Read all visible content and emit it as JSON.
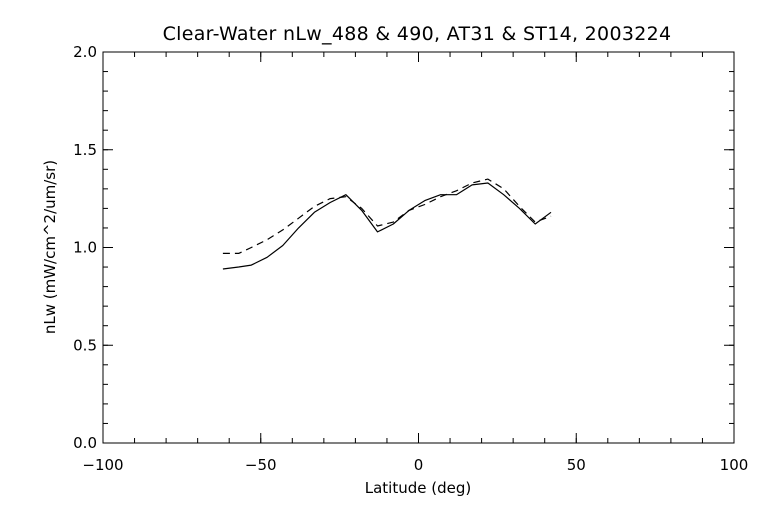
{
  "chart_data": {
    "type": "line",
    "title": "Clear-Water nLw_488 & 490, AT31 & ST14, 2003224",
    "xlabel": "Latitude (deg)",
    "ylabel": "nLw (mW/cm^2/um/sr)",
    "xlim": [
      -100,
      100
    ],
    "ylim": [
      0.0,
      2.0
    ],
    "xticks": [
      -100,
      -50,
      0,
      50,
      100
    ],
    "xtick_labels": [
      "−100",
      "−50",
      "0",
      "50",
      "100"
    ],
    "yticks": [
      0.0,
      0.5,
      1.0,
      1.5,
      2.0
    ],
    "ytick_labels": [
      "0.0",
      "0.5",
      "1.0",
      "1.5",
      "2.0"
    ],
    "x_minor_step": 10,
    "y_minor_step": 0.1,
    "grid": false,
    "legend": "none",
    "series": [
      {
        "style": "solid",
        "color": "#000000",
        "x": [
          -62,
          -57,
          -53,
          -48,
          -43,
          -38,
          -33,
          -28,
          -23,
          -18,
          -13,
          -8,
          -3,
          2,
          7,
          12,
          17,
          22,
          27,
          32,
          37,
          42
        ],
        "y": [
          0.89,
          0.9,
          0.91,
          0.95,
          1.01,
          1.1,
          1.18,
          1.23,
          1.27,
          1.19,
          1.08,
          1.12,
          1.19,
          1.24,
          1.27,
          1.27,
          1.32,
          1.33,
          1.27,
          1.2,
          1.12,
          1.18
        ]
      },
      {
        "style": "dashed",
        "color": "#000000",
        "x": [
          -62,
          -57,
          -53,
          -48,
          -43,
          -38,
          -33,
          -28,
          -23,
          -18,
          -13,
          -8,
          -3,
          2,
          7,
          12,
          17,
          22,
          27,
          32,
          37,
          42
        ],
        "y": [
          0.97,
          0.97,
          1.0,
          1.04,
          1.09,
          1.15,
          1.21,
          1.25,
          1.26,
          1.2,
          1.11,
          1.13,
          1.19,
          1.22,
          1.26,
          1.29,
          1.33,
          1.35,
          1.3,
          1.21,
          1.13,
          1.16
        ]
      }
    ]
  }
}
